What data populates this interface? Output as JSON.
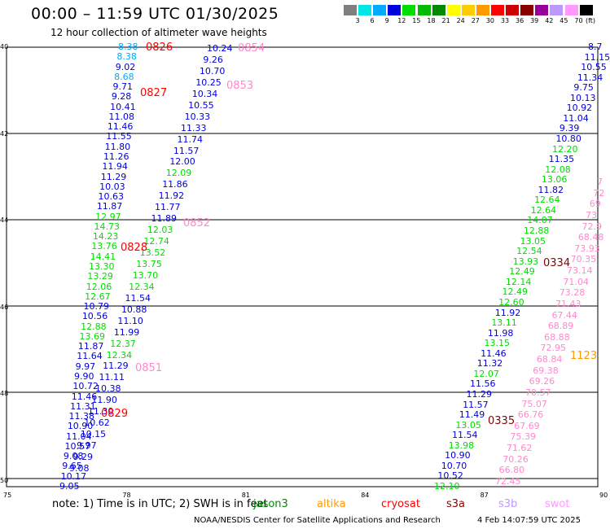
{
  "header": {
    "title": "00:00 – 11:59 UTC 01/30/2025",
    "subtitle": "12 hour collection of altimeter wave heights"
  },
  "colorbar": {
    "unit": "(ft)",
    "levels": [
      {
        "label": "3",
        "color": "#7f7f7f"
      },
      {
        "label": "6",
        "color": "#00e6e6"
      },
      {
        "label": "9",
        "color": "#00aaff"
      },
      {
        "label": "12",
        "color": "#0000dd"
      },
      {
        "label": "15",
        "color": "#00dd00"
      },
      {
        "label": "18",
        "color": "#00bb00"
      },
      {
        "label": "21",
        "color": "#008800"
      },
      {
        "label": "24",
        "color": "#ffff00"
      },
      {
        "label": "27",
        "color": "#ffcc00"
      },
      {
        "label": "30",
        "color": "#ff9900"
      },
      {
        "label": "33",
        "color": "#ff0000"
      },
      {
        "label": "36",
        "color": "#cc0000"
      },
      {
        "label": "39",
        "color": "#880000"
      },
      {
        "label": "42",
        "color": "#990099"
      },
      {
        "label": "45",
        "color": "#bb99ff"
      },
      {
        "label": "70",
        "color": "#ff99ff"
      },
      {
        "label": "",
        "color": "#000000"
      }
    ]
  },
  "map": {
    "lat_labels": [
      "40",
      "42",
      "44",
      "46",
      "48",
      "50"
    ],
    "lon_labels": [
      "75",
      "78",
      "81",
      "84",
      "87",
      "90"
    ],
    "passes": [
      {
        "label": "0826",
        "color": "#ff0000"
      },
      {
        "label": "0827",
        "color": "#ff0000"
      },
      {
        "label": "0828",
        "color": "#ff0000"
      },
      {
        "label": "0829",
        "color": "#ff0000"
      },
      {
        "label": "0854",
        "color": "#ff88cc"
      },
      {
        "label": "0853",
        "color": "#ff88cc"
      },
      {
        "label": "0852",
        "color": "#ff88cc"
      },
      {
        "label": "0851",
        "color": "#ff88cc"
      },
      {
        "label": "0334",
        "color": "#880000"
      },
      {
        "label": "0335",
        "color": "#880000"
      },
      {
        "label": "1123",
        "color": "#ff9900"
      }
    ],
    "track_a": [
      "8.38",
      "8.38",
      "9.02",
      "8.68",
      "9.71",
      "9.28",
      "10.41",
      "11.08",
      "11.46",
      "11.55",
      "11.80",
      "11.26",
      "11.94",
      "11.29",
      "10.03",
      "10.63",
      "11.87",
      "12.97",
      "14.73",
      "14.23",
      "13.76",
      "14.41",
      "13.30",
      "13.29",
      "12.06",
      "12.67",
      "10.79",
      "10.56",
      "12.88",
      "13.69",
      "11.87",
      "11.64",
      "9.97",
      "9.90",
      "10.72",
      "11.46",
      "11.31",
      "11.38",
      "10.90",
      "11.04",
      "10.57",
      "9.08",
      "9.65",
      "10.17",
      "9.05"
    ],
    "track_a_colors": [
      "#00aaff",
      "#00aaff",
      "#0000dd",
      "#00aaff",
      "#0000dd",
      "#0000dd",
      "#0000dd",
      "#0000dd",
      "#0000dd",
      "#0000dd",
      "#0000dd",
      "#0000dd",
      "#0000dd",
      "#0000dd",
      "#0000dd",
      "#0000dd",
      "#0000dd",
      "#00dd00",
      "#00dd00",
      "#00dd00",
      "#00dd00",
      "#00dd00",
      "#00dd00",
      "#00dd00",
      "#00dd00",
      "#00dd00",
      "#0000dd",
      "#0000dd",
      "#00dd00",
      "#00dd00",
      "#0000dd",
      "#0000dd",
      "#0000dd",
      "#0000dd",
      "#0000dd",
      "#0000dd",
      "#0000dd",
      "#0000dd",
      "#0000dd",
      "#0000dd",
      "#0000dd",
      "#0000dd",
      "#0000dd",
      "#0000dd",
      "#0000dd"
    ],
    "track_b": [
      "10.24",
      "9.26",
      "10.70",
      "10.25",
      "10.34",
      "10.55",
      "10.33",
      "11.33",
      "11.74",
      "11.57",
      "12.00",
      "12.09",
      "11.86",
      "11.92",
      "11.77",
      "11.89",
      "12.03",
      "12.74",
      "13.52",
      "13.75",
      "13.70",
      "12.34",
      "11.54",
      "10.88",
      "11.10",
      "11.99",
      "12.37",
      "12.34",
      "11.29",
      "11.11",
      "10.38",
      "11.90",
      "11.30",
      "10.62",
      "10.15",
      "9.97",
      "9.29",
      "9.08"
    ],
    "track_b_colors": [
      "#0000dd",
      "#0000dd",
      "#0000dd",
      "#0000dd",
      "#0000dd",
      "#0000dd",
      "#0000dd",
      "#0000dd",
      "#0000dd",
      "#0000dd",
      "#0000dd",
      "#00dd00",
      "#0000dd",
      "#0000dd",
      "#0000dd",
      "#0000dd",
      "#00dd00",
      "#00dd00",
      "#00dd00",
      "#00dd00",
      "#00dd00",
      "#00dd00",
      "#0000dd",
      "#0000dd",
      "#0000dd",
      "#0000dd",
      "#00dd00",
      "#00dd00",
      "#0000dd",
      "#0000dd",
      "#0000dd",
      "#0000dd",
      "#0000dd",
      "#0000dd",
      "#0000dd",
      "#0000dd",
      "#0000dd",
      "#0000dd"
    ],
    "track_c": [
      "8.7",
      "11.15",
      "10.55",
      "11.34",
      "9.75",
      "10.13",
      "10.92",
      "11.04",
      "9.39",
      "10.80",
      "12.20",
      "11.35",
      "12.08",
      "13.06",
      "11.82",
      "12.64",
      "12.64",
      "14.07",
      "12.88",
      "13.05",
      "12.54",
      "13.93",
      "12.49",
      "12.14",
      "12.49",
      "12.60",
      "11.92",
      "13.11",
      "11.98",
      "13.15",
      "11.46",
      "11.32",
      "12.07",
      "11.56",
      "11.29",
      "11.57",
      "11.49",
      "13.05",
      "11.54",
      "13.98",
      "10.90",
      "10.70",
      "10.52",
      "12.10"
    ],
    "track_c_colors": [
      "#0000dd",
      "#0000dd",
      "#0000dd",
      "#0000dd",
      "#0000dd",
      "#0000dd",
      "#0000dd",
      "#0000dd",
      "#0000dd",
      "#0000dd",
      "#00dd00",
      "#0000dd",
      "#00dd00",
      "#00dd00",
      "#0000dd",
      "#00dd00",
      "#00dd00",
      "#00dd00",
      "#00dd00",
      "#00dd00",
      "#00dd00",
      "#00dd00",
      "#00dd00",
      "#00dd00",
      "#00dd00",
      "#00dd00",
      "#0000dd",
      "#00dd00",
      "#0000dd",
      "#00dd00",
      "#0000dd",
      "#0000dd",
      "#00dd00",
      "#0000dd",
      "#0000dd",
      "#0000dd",
      "#0000dd",
      "#00dd00",
      "#0000dd",
      "#00dd00",
      "#0000dd",
      "#0000dd",
      "#0000dd",
      "#00dd00"
    ],
    "track_d": [
      "7",
      "72",
      "69",
      "73",
      "72.9",
      "68.48",
      "73.93",
      "70.35",
      "73.14",
      "71.04",
      "73.28",
      "71.43",
      "67.44",
      "68.89",
      "68.88",
      "72.95",
      "68.84",
      "69.38",
      "69.26",
      "70.57",
      "75.07",
      "66.76",
      "67.69",
      "75.39",
      "71.62",
      "70.26",
      "66.80",
      "72.45"
    ],
    "track_d_color": "#ff88cc"
  },
  "footer": {
    "note": "note:  1) Time is in UTC; 2) SWH is in feet",
    "satellites": [
      {
        "label": "jason3",
        "color": "#008800"
      },
      {
        "label": "altika",
        "color": "#ff9900"
      },
      {
        "label": "cryosat",
        "color": "#ff0000"
      },
      {
        "label": "s3a",
        "color": "#880000"
      },
      {
        "label": "s3b",
        "color": "#bb99ff"
      },
      {
        "label": "swot",
        "color": "#ff99ff"
      }
    ],
    "credit": "NOAA/NESDIS Center for Satellite Applications and Research",
    "timestamp": "4 Feb 14:07:59 UTC 2025"
  }
}
